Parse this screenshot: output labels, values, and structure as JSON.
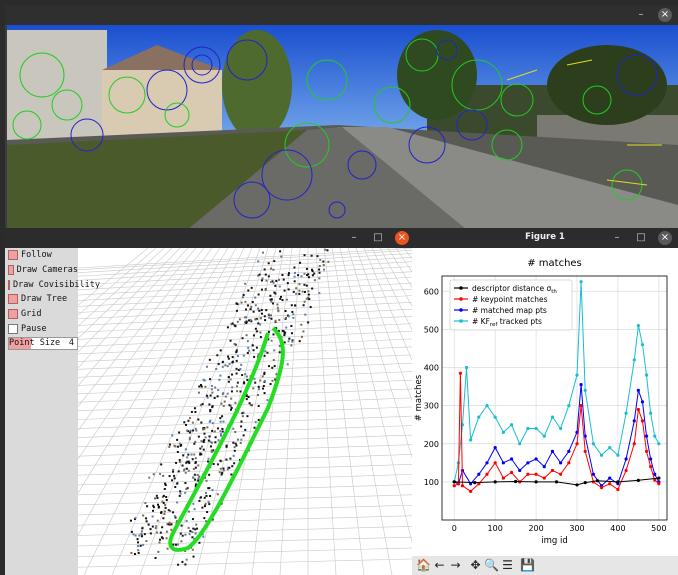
{
  "camera_window": {
    "min": "–",
    "close": "×"
  },
  "viewer_window": {
    "min": "–",
    "max": "□",
    "close": "×"
  },
  "figure_window": {
    "title": "Figure 1",
    "min": "–",
    "max": "□",
    "close": "×"
  },
  "panel": {
    "items": [
      {
        "label": "Follow",
        "checked": true
      },
      {
        "label": "Draw Cameras",
        "checked": true
      },
      {
        "label": "Draw Covisibility",
        "checked": true
      },
      {
        "label": "Draw Tree",
        "checked": true
      },
      {
        "label": "Grid",
        "checked": true
      },
      {
        "label": "Pause",
        "checked": false
      }
    ],
    "point_size_label": "Point Size",
    "point_size_value": "4"
  },
  "toolbar": {
    "home": "🏠",
    "back": "←",
    "forward": "→",
    "pan": "✥",
    "zoom": "🔍",
    "config": "☰",
    "save": "💾"
  },
  "colors": {
    "black": "#000000",
    "red": "#ff0000",
    "blue": "#0000ff",
    "cyan": "#17becf",
    "trajectory": "#22dd22"
  },
  "chart_data": {
    "type": "line",
    "title": "# matches",
    "xlabel": "img id",
    "ylabel": "# matches",
    "xlim": [
      -30,
      520
    ],
    "ylim": [
      0,
      640
    ],
    "xticks": [
      0,
      100,
      200,
      300,
      400,
      500
    ],
    "yticks": [
      100,
      200,
      300,
      400,
      500,
      600
    ],
    "grid": true,
    "legend_position": "top-left",
    "series": [
      {
        "name": "descriptor distance σth",
        "label_main": "descriptor distance σ",
        "label_sub": "th",
        "color": "#000000",
        "x": [
          0,
          50,
          100,
          150,
          200,
          250,
          300,
          320,
          350,
          400,
          450,
          500
        ],
        "y": [
          100,
          98,
          100,
          101,
          100,
          100,
          92,
          98,
          103,
          100,
          104,
          110
        ]
      },
      {
        "name": "# keypoint matches",
        "label_main": "# keypoint matches",
        "label_sub": "",
        "color": "#ff0000",
        "x": [
          0,
          10,
          15,
          20,
          40,
          60,
          80,
          100,
          120,
          140,
          160,
          180,
          200,
          220,
          240,
          260,
          280,
          300,
          310,
          320,
          340,
          360,
          380,
          400,
          420,
          440,
          450,
          460,
          470,
          480,
          490,
          500
        ],
        "y": [
          90,
          95,
          385,
          90,
          75,
          95,
          120,
          150,
          110,
          125,
          100,
          120,
          120,
          110,
          130,
          120,
          150,
          200,
          300,
          180,
          100,
          85,
          95,
          80,
          130,
          200,
          290,
          260,
          180,
          140,
          105,
          95
        ]
      },
      {
        "name": "# matched map pts",
        "label_main": "# matched map pts",
        "label_sub": "",
        "color": "#0000ff",
        "x": [
          0,
          10,
          20,
          40,
          60,
          80,
          100,
          120,
          140,
          160,
          180,
          200,
          220,
          240,
          260,
          280,
          300,
          310,
          320,
          340,
          360,
          380,
          400,
          420,
          440,
          450,
          460,
          470,
          480,
          490,
          500
        ],
        "y": [
          100,
          95,
          130,
          95,
          120,
          150,
          190,
          150,
          160,
          130,
          150,
          160,
          140,
          180,
          150,
          180,
          230,
          355,
          220,
          120,
          90,
          110,
          95,
          160,
          260,
          340,
          310,
          220,
          160,
          120,
          100
        ]
      },
      {
        "name": "# KFref tracked pts",
        "label_main": "# KF",
        "label_sub": "ref",
        "label_tail": " tracked pts",
        "color": "#17becf",
        "x": [
          0,
          10,
          20,
          30,
          40,
          60,
          80,
          100,
          120,
          140,
          160,
          180,
          200,
          220,
          240,
          260,
          280,
          300,
          310,
          320,
          340,
          360,
          380,
          400,
          420,
          440,
          450,
          460,
          470,
          480,
          490,
          500
        ],
        "y": [
          100,
          150,
          250,
          400,
          210,
          270,
          300,
          270,
          230,
          250,
          200,
          240,
          240,
          220,
          270,
          240,
          300,
          380,
          625,
          340,
          200,
          170,
          190,
          170,
          280,
          420,
          510,
          460,
          380,
          280,
          220,
          200
        ]
      }
    ]
  }
}
